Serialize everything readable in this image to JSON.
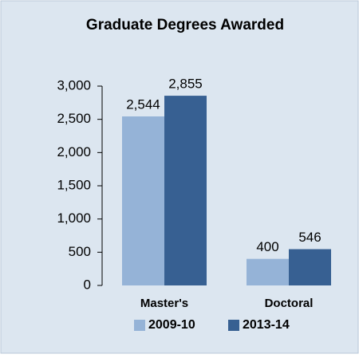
{
  "chart_data": {
    "type": "bar",
    "title": "Graduate Degrees Awarded",
    "categories": [
      "Master's",
      "Doctoral"
    ],
    "series": [
      {
        "name": "2009-10",
        "color": "#95b3d7",
        "values": [
          2544,
          400
        ],
        "value_labels": [
          "2,544",
          "400"
        ]
      },
      {
        "name": "2013-14",
        "color": "#376092",
        "values": [
          2855,
          546
        ],
        "value_labels": [
          "2,855",
          "546"
        ]
      }
    ],
    "ylim": [
      0,
      3000
    ],
    "yticks": [
      0,
      500,
      {
        "value": 1000,
        "label": "1,000"
      },
      {
        "value": 1500,
        "label": "1,500"
      },
      {
        "value": 2000,
        "label": "2,000"
      },
      {
        "value": 2500,
        "label": "2,500"
      },
      {
        "value": 3000,
        "label": "3,000"
      }
    ],
    "legend": "bottom",
    "grid": false
  }
}
